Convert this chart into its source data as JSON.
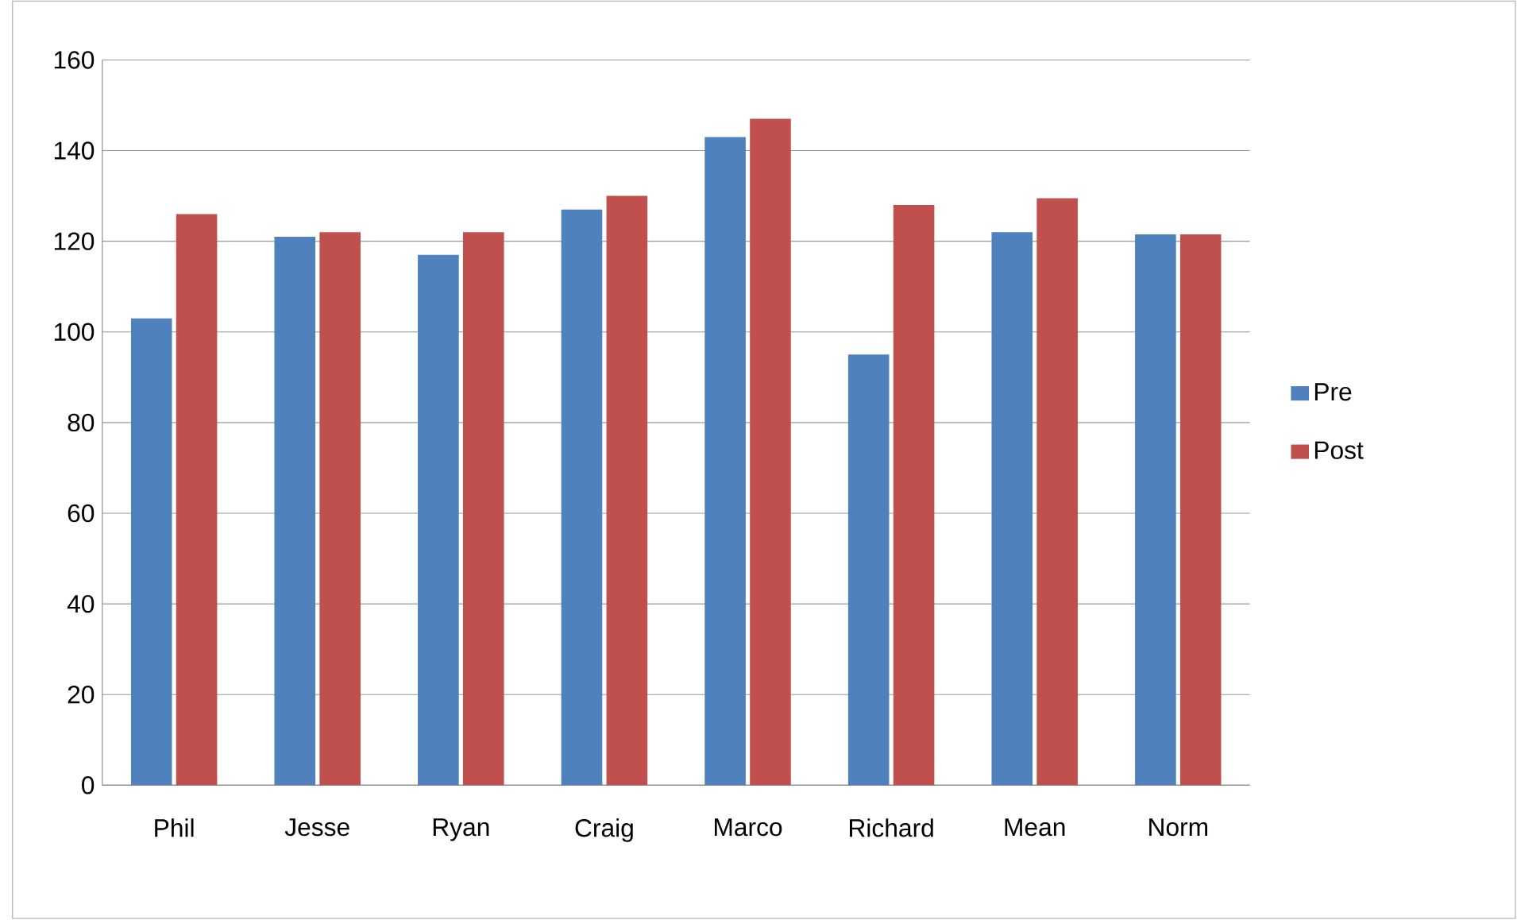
{
  "chart_data": {
    "type": "bar",
    "categories": [
      "Phil",
      "Jesse",
      "Ryan",
      "Craig",
      "Marco",
      "Richard",
      "Mean",
      "Norm"
    ],
    "series": [
      {
        "name": "Pre",
        "color": "#4f81bd",
        "values": [
          103,
          121,
          117,
          127,
          143,
          95,
          122,
          121.5
        ]
      },
      {
        "name": "Post",
        "color": "#c0504d",
        "values": [
          126,
          122,
          122,
          130,
          147,
          128,
          129.5,
          121.5
        ]
      }
    ],
    "ylim": [
      0,
      160
    ],
    "yticks": [
      0,
      20,
      40,
      60,
      80,
      100,
      120,
      140,
      160
    ],
    "grid": "y",
    "legend": "right"
  }
}
